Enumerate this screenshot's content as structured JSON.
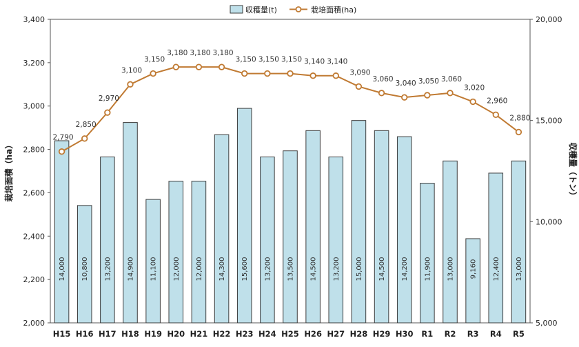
{
  "chart_data": {
    "type": "bar+line",
    "categories": [
      "H15",
      "H16",
      "H17",
      "H18",
      "H19",
      "H20",
      "H21",
      "H22",
      "H23",
      "H24",
      "H25",
      "H26",
      "H27",
      "H28",
      "H29",
      "H30",
      "R1",
      "R2",
      "R3",
      "R4",
      "R5"
    ],
    "series": [
      {
        "name": "収穫量(t)",
        "type": "bar",
        "axis": "right",
        "color": "#bfe0ea",
        "values": [
          14000,
          10800,
          13200,
          14900,
          11100,
          12000,
          12000,
          14300,
          15600,
          13200,
          13500,
          14500,
          13200,
          15000,
          14500,
          14200,
          11900,
          13000,
          9160,
          12400,
          13000
        ],
        "labels": [
          "14,000",
          "10,800",
          "13,200",
          "14,900",
          "11,100",
          "12,000",
          "12,000",
          "14,300",
          "15,600",
          "13,200",
          "13,500",
          "14,500",
          "13,200",
          "15,000",
          "14,500",
          "14,200",
          "11,900",
          "13,000",
          "9,160",
          "12,400",
          "13,000"
        ]
      },
      {
        "name": "栽培面積(ha)",
        "type": "line",
        "axis": "left",
        "color": "#c07a32",
        "values": [
          2790,
          2850,
          2970,
          3100,
          3150,
          3180,
          3180,
          3180,
          3150,
          3150,
          3150,
          3140,
          3140,
          3090,
          3060,
          3040,
          3050,
          3060,
          3020,
          2960,
          2880
        ],
        "labels": [
          "2,790",
          "2,850",
          "2,970",
          "3,100",
          "3,150",
          "3,180",
          "3,180",
          "3,180",
          "3,150",
          "3,150",
          "3,150",
          "3,140",
          "3,140",
          "3,090",
          "3,060",
          "3,040",
          "3,050",
          "3,060",
          "3,020",
          "2,960",
          "2,880"
        ]
      }
    ],
    "left_axis": {
      "label": "栽培面積（ha）",
      "min": 2000,
      "max": 3400,
      "ticks": [
        2000,
        2200,
        2400,
        2600,
        2800,
        3000,
        3200,
        3400
      ],
      "tick_labels": [
        "2,000",
        "2,200",
        "2,400",
        "2,600",
        "2,800",
        "3,000",
        "3,200",
        "3,400"
      ]
    },
    "right_axis": {
      "label": "収穫量（トン）",
      "min": 5000,
      "max": 20000,
      "ticks": [
        5000,
        10000,
        15000,
        20000
      ],
      "tick_labels": [
        "5,000",
        "10,000",
        "15,000",
        "20,000"
      ]
    },
    "legend_position": "top-center",
    "grid": false
  }
}
